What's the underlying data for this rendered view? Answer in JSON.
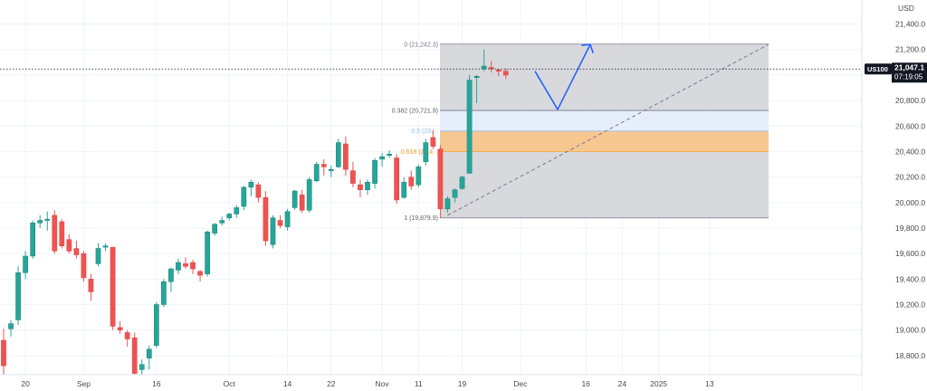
{
  "chart_data": {
    "type": "candlestick",
    "symbol": "US100",
    "currency": "USD",
    "last_price": "21,047.1",
    "countdown": "07:19:05",
    "y_range": [
      18650,
      21560
    ],
    "y_ticks": [
      "21,400.0",
      "21,200.0",
      "21,000.0",
      "20,800.0",
      "20,600.0",
      "20,400.0",
      "20,200.0",
      "20,000.0",
      "19,800.0",
      "19,600.0",
      "19,400.0",
      "19,200.0",
      "19,000.0",
      "18,800.0"
    ],
    "x_ticks": [
      {
        "label": "20",
        "bar": 3
      },
      {
        "label": "Sep",
        "bar": 11
      },
      {
        "label": "16",
        "bar": 21
      },
      {
        "label": "Oct",
        "bar": 31
      },
      {
        "label": "14",
        "bar": 39
      },
      {
        "label": "22",
        "bar": 45
      },
      {
        "label": "Nov",
        "bar": 52
      },
      {
        "label": "11",
        "bar": 57
      },
      {
        "label": "19",
        "bar": 63
      },
      {
        "label": "Dec",
        "bar": 71
      },
      {
        "label": "16",
        "bar": 80
      },
      {
        "label": "24",
        "bar": 85
      },
      {
        "label": "2025",
        "bar": 90
      },
      {
        "label": "13",
        "bar": 97
      }
    ],
    "candles": [
      [
        18920,
        19010,
        18650,
        18720
      ],
      [
        19010,
        19080,
        18950,
        19050
      ],
      [
        19080,
        19500,
        19040,
        19450
      ],
      [
        19450,
        19620,
        19400,
        19580
      ],
      [
        19580,
        19860,
        19560,
        19840
      ],
      [
        19840,
        19900,
        19800,
        19860
      ],
      [
        19860,
        19930,
        19780,
        19870
      ],
      [
        19900,
        19940,
        19600,
        19620
      ],
      [
        19850,
        19870,
        19640,
        19660
      ],
      [
        19710,
        19750,
        19600,
        19620
      ],
      [
        19640,
        19700,
        19560,
        19590
      ],
      [
        19600,
        19620,
        19380,
        19410
      ],
      [
        19400,
        19440,
        19230,
        19300
      ],
      [
        19520,
        19680,
        19500,
        19640
      ],
      [
        19650,
        19680,
        19620,
        19660
      ],
      [
        19650,
        19650,
        19000,
        19030
      ],
      [
        19020,
        19070,
        18970,
        19000
      ],
      [
        18980,
        19000,
        18870,
        18930
      ],
      [
        18940,
        18980,
        18620,
        18660
      ],
      [
        18690,
        18770,
        18640,
        18730
      ],
      [
        18780,
        18880,
        18690,
        18850
      ],
      [
        18880,
        19220,
        18860,
        19200
      ],
      [
        19200,
        19400,
        19180,
        19380
      ],
      [
        19380,
        19490,
        19300,
        19480
      ],
      [
        19470,
        19560,
        19440,
        19530
      ],
      [
        19520,
        19570,
        19480,
        19500
      ],
      [
        19530,
        19550,
        19440,
        19480
      ],
      [
        19460,
        19470,
        19380,
        19430
      ],
      [
        19440,
        19780,
        19420,
        19770
      ],
      [
        19760,
        19840,
        19740,
        19830
      ],
      [
        19840,
        19890,
        19820,
        19860
      ],
      [
        19880,
        19920,
        19860,
        19910
      ],
      [
        19910,
        19980,
        19880,
        19960
      ],
      [
        19970,
        20130,
        19940,
        20120
      ],
      [
        20120,
        20180,
        20050,
        20160
      ],
      [
        20140,
        20160,
        20000,
        20040
      ],
      [
        20040,
        20090,
        19660,
        19700
      ],
      [
        19670,
        19900,
        19640,
        19880
      ],
      [
        19860,
        19900,
        19800,
        19820
      ],
      [
        19810,
        19950,
        19780,
        19930
      ],
      [
        19960,
        20100,
        19940,
        20090
      ],
      [
        20060,
        20100,
        19920,
        19940
      ],
      [
        19940,
        20200,
        19920,
        20180
      ],
      [
        20170,
        20320,
        20160,
        20300
      ],
      [
        20300,
        20340,
        20210,
        20280
      ],
      [
        20250,
        20290,
        20200,
        20260
      ],
      [
        20280,
        20500,
        20270,
        20470
      ],
      [
        20460,
        20520,
        20210,
        20260
      ],
      [
        20250,
        20320,
        20120,
        20150
      ],
      [
        20140,
        20180,
        20040,
        20100
      ],
      [
        20100,
        20180,
        20060,
        20160
      ],
      [
        20150,
        20350,
        20110,
        20330
      ],
      [
        20340,
        20390,
        20280,
        20360
      ],
      [
        20370,
        20410,
        20350,
        20380
      ],
      [
        20350,
        20380,
        19990,
        20020
      ],
      [
        20040,
        20200,
        20030,
        20160
      ],
      [
        20200,
        20250,
        20100,
        20130
      ],
      [
        20140,
        20300,
        20120,
        20280
      ],
      [
        20320,
        20500,
        20290,
        20470
      ],
      [
        20510,
        20570,
        20420,
        20440
      ],
      [
        20420,
        20450,
        19880,
        19950
      ],
      [
        19950,
        20050,
        19920,
        20030
      ],
      [
        20040,
        20110,
        20000,
        20100
      ],
      [
        20110,
        20210,
        20100,
        20200
      ],
      [
        20230,
        21000,
        20230,
        20960
      ],
      [
        20980,
        21000,
        20780,
        20990
      ],
      [
        21050,
        21200,
        21030,
        21070
      ],
      [
        21060,
        21110,
        21020,
        21050
      ],
      [
        21040,
        21050,
        20990,
        21030
      ],
      [
        21030,
        21050,
        20970,
        21000
      ]
    ],
    "fib_levels": [
      {
        "ratio": "0",
        "price": 21242.3,
        "label": "0 (21,242.3)"
      },
      {
        "ratio": "0.382",
        "price": 20721.9,
        "label": "0.382 (20,721.9)"
      },
      {
        "ratio": "0.5",
        "price": 20561.1,
        "label": "0.5 (20,..."
      },
      {
        "ratio": "0.618",
        "price": 20400.3,
        "label": "0.618 (20,4..."
      },
      {
        "ratio": "1",
        "price": 19879.9,
        "label": "1 (19,879.9)"
      }
    ],
    "projection": [
      [
        21030,
        0
      ],
      [
        20730,
        0
      ],
      [
        21240,
        0
      ]
    ],
    "colors": {
      "up": "#26a69a",
      "down": "#ef5350",
      "arrow": "#2962ff",
      "fib_gray": "#d3d5d8",
      "fib_blue": "#e3ecfb",
      "fib_orange": "#f6c185",
      "price_tag": "#131722"
    }
  }
}
